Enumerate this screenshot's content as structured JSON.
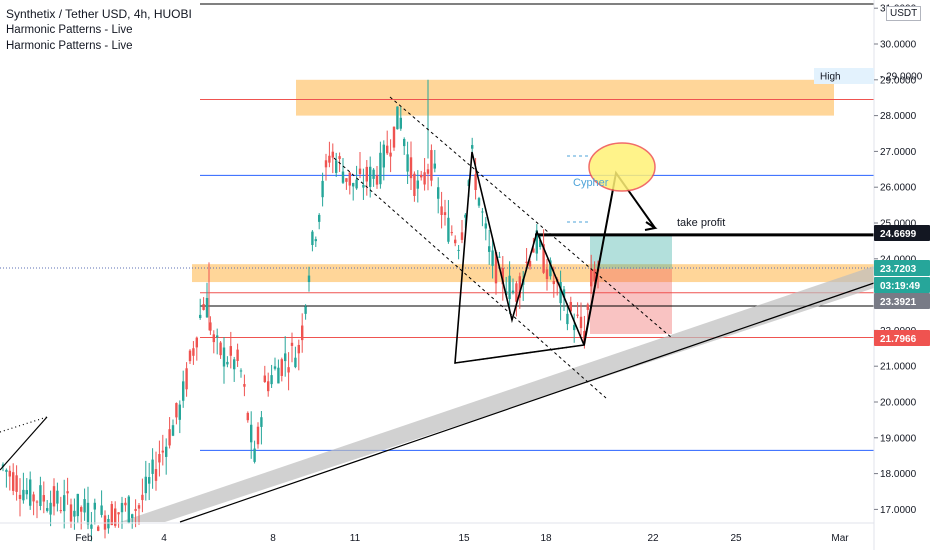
{
  "header": {
    "symbol_line": "Synthetix / Tether USD, 4h, HUOBI",
    "indicators": [
      "Harmonic Patterns - Live",
      "Harmonic Patterns - Live"
    ],
    "currency_badge": "USDT"
  },
  "chart_data": {
    "type": "candlestick",
    "symbol": "SNX/USDT",
    "timeframe": "4h",
    "exchange": "HUOBI",
    "ylim": [
      16.6,
      31.0
    ],
    "y_ticks": [
      "17.0000",
      "18.0000",
      "19.0000",
      "20.0000",
      "21.0000",
      "22.0000",
      "23.0000",
      "24.0000",
      "25.0000",
      "26.0000",
      "27.0000",
      "28.0000",
      "29.0000",
      "30.0000",
      "31.0000"
    ],
    "x_ticks": [
      "Feb",
      "4",
      "8",
      "11",
      "15",
      "18",
      "22",
      "25",
      "Mar"
    ],
    "price_tags": [
      {
        "label": "High",
        "value": "29.0000",
        "kind": "high",
        "color": "#e3f2fd",
        "text": "#131722"
      },
      {
        "value": "24.6699",
        "kind": "target",
        "color": "#131722",
        "text": "#ffffff"
      },
      {
        "value": "23.7203",
        "kind": "last",
        "color": "#26a69a",
        "text": "#ffffff"
      },
      {
        "value": "03:19:49",
        "kind": "countdown",
        "color": "#26a69a",
        "text": "#ffffff"
      },
      {
        "value": "23.3921",
        "kind": "level",
        "color": "#787b86",
        "text": "#ffffff"
      },
      {
        "value": "21.7966",
        "kind": "stop",
        "color": "#ef5350",
        "text": "#ffffff"
      }
    ],
    "horizontal_levels": [
      {
        "value": 28.45,
        "color": "#ef5350"
      },
      {
        "value": 26.33,
        "color": "#2962ff"
      },
      {
        "value": 24.67,
        "color": "#000000",
        "thick": true
      },
      {
        "value": 23.05,
        "color": "#ef5350"
      },
      {
        "value": 22.68,
        "color": "#000000"
      },
      {
        "value": 21.8,
        "color": "#ef5350"
      },
      {
        "value": 18.65,
        "color": "#2962ff"
      }
    ],
    "zones": [
      {
        "from": 28.0,
        "to": 29.0,
        "color": "#ffcc80"
      },
      {
        "from": 23.35,
        "to": 23.85,
        "color": "#ffcc80"
      }
    ],
    "annotations": {
      "pattern": "Cypher",
      "target_label": "take profit"
    },
    "colors": {
      "up": "#26a69a",
      "down": "#ef5350"
    }
  }
}
